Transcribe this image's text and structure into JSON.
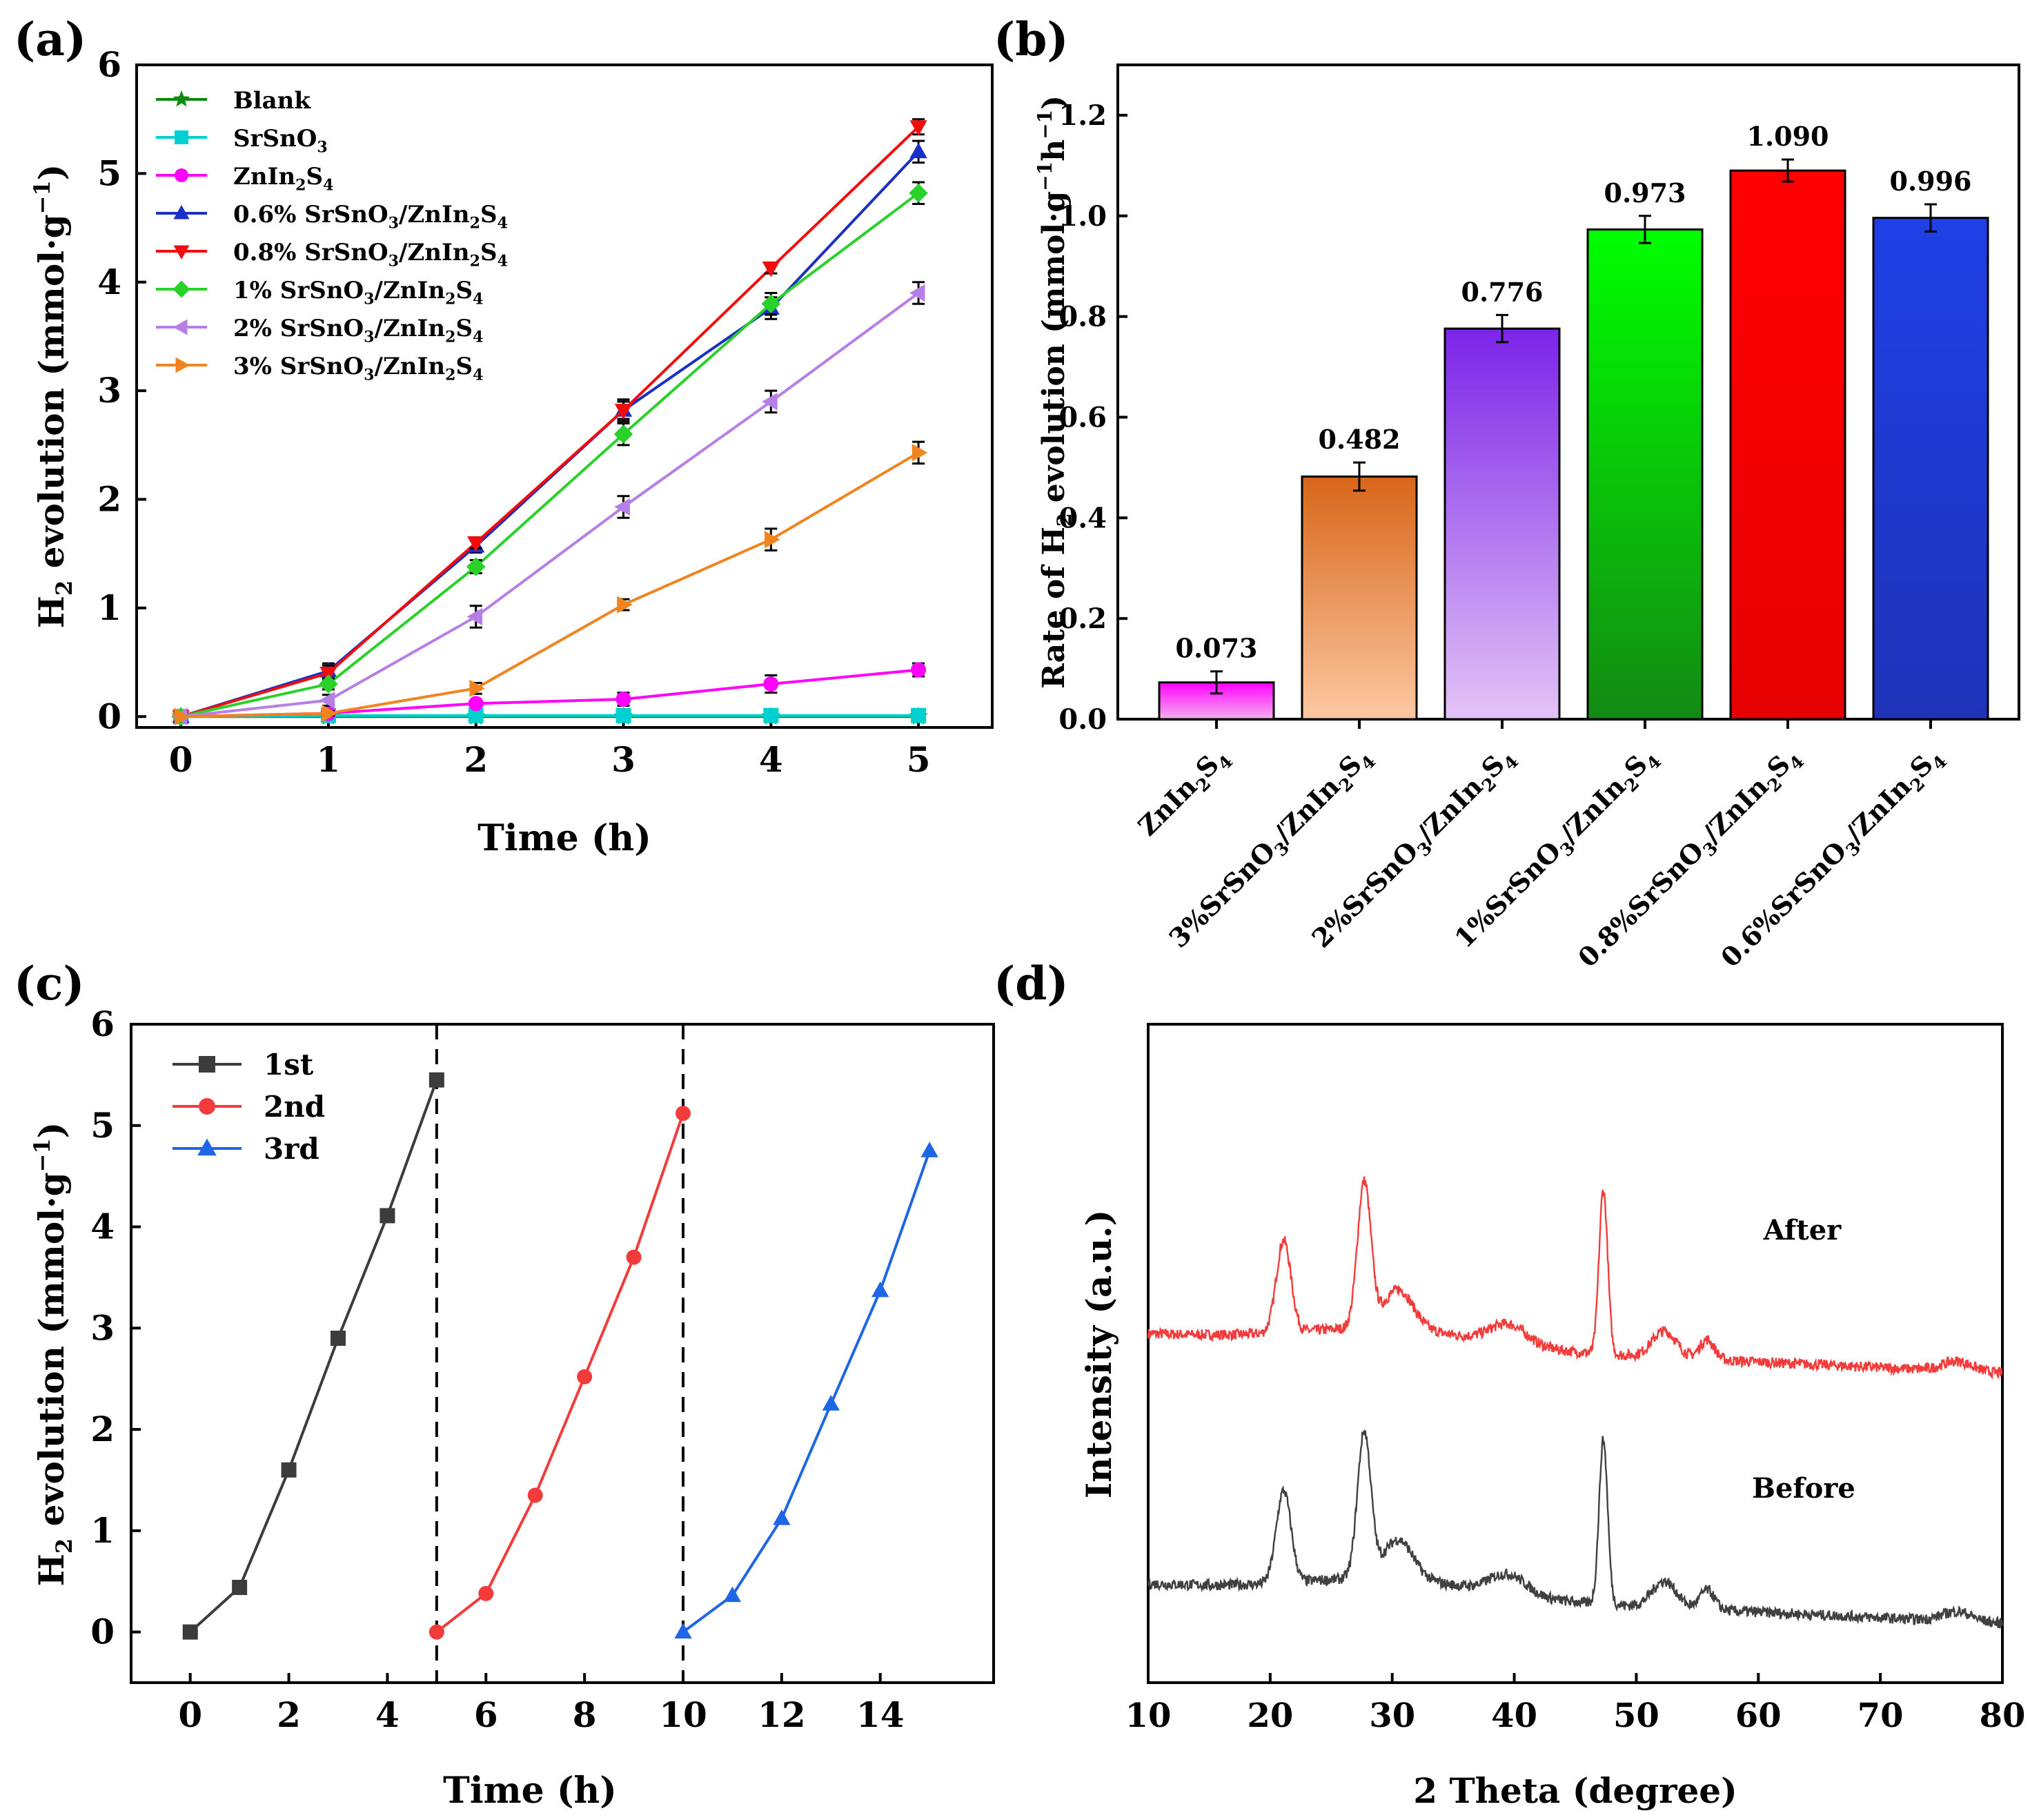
{
  "figure": {
    "panels": [
      {
        "id": "a",
        "label": "(a)"
      },
      {
        "id": "b",
        "label": "(b)"
      },
      {
        "id": "c",
        "label": "(c)"
      },
      {
        "id": "d",
        "label": "(d)"
      }
    ]
  },
  "chart_data": [
    {
      "id": "a",
      "type": "line",
      "title": "",
      "xlabel": "Time (h)",
      "ylabel_main": "H",
      "ylabel_sub": "2",
      "ylabel_rest": " evolution (mmol·g",
      "ylabel_sup": "−1",
      "ylabel_close": ")",
      "xlim": [
        -0.3,
        5.5
      ],
      "ylim": [
        -0.1,
        6
      ],
      "x_ticks": [
        "0",
        "1",
        "2",
        "3",
        "4",
        "5"
      ],
      "y_ticks": [
        "0",
        "1",
        "2",
        "3",
        "4",
        "5",
        "6"
      ],
      "x": [
        0,
        1,
        2,
        3,
        4,
        5
      ],
      "legend_position": "top-left",
      "series": [
        {
          "name": "Blank",
          "pre": "Blank",
          "sub1": "",
          "mid": "",
          "sub2": "",
          "post": "",
          "sub3": "",
          "color": "#0b8a0b",
          "marker": "star",
          "values": [
            0,
            0,
            0,
            0,
            0,
            0
          ],
          "errors": [
            0,
            0,
            0,
            0,
            0,
            0
          ]
        },
        {
          "name": "SrSnO3",
          "pre": "SrSnO",
          "sub1": "3",
          "mid": "",
          "sub2": "",
          "post": "",
          "sub3": "",
          "color": "#00d0d0",
          "marker": "square",
          "values": [
            0,
            0.01,
            0.01,
            0.01,
            0.01,
            0.01
          ],
          "errors": [
            0,
            0,
            0,
            0,
            0,
            0
          ]
        },
        {
          "name": "ZnIn2S4",
          "pre": "ZnIn",
          "sub1": "2",
          "mid": "S",
          "sub2": "4",
          "post": "",
          "sub3": "",
          "color": "#ff00ff",
          "marker": "circle",
          "values": [
            0,
            0.03,
            0.12,
            0.16,
            0.3,
            0.43
          ],
          "errors": [
            0,
            0.02,
            0.03,
            0.06,
            0.08,
            0.06
          ]
        },
        {
          "name": "0.6% SrSnO3/ZnIn2S4",
          "pre": "0.6% SrSnO",
          "sub1": "3",
          "mid": "/ZnIn",
          "sub2": "2",
          "post": "S",
          "sub3": "4",
          "color": "#1a2fc6",
          "marker": "triangle-up",
          "values": [
            0,
            0.42,
            1.57,
            2.82,
            3.76,
            5.2
          ],
          "errors": [
            0,
            0.07,
            0.06,
            0.08,
            0.1,
            0.1
          ]
        },
        {
          "name": "0.8% SrSnO3/ZnIn2S4",
          "pre": "0.8% SrSnO",
          "sub1": "3",
          "mid": "/ZnIn",
          "sub2": "2",
          "post": "S",
          "sub3": "4",
          "color": "#f20c0c",
          "marker": "triangle-down",
          "values": [
            0,
            0.4,
            1.6,
            2.82,
            4.13,
            5.43
          ],
          "errors": [
            0,
            0.07,
            0.05,
            0.1,
            0.05,
            0.07
          ]
        },
        {
          "name": "1% SrSnO3/ZnIn2S4",
          "pre": "1%  SrSnO",
          "sub1": "3",
          "mid": "/ZnIn",
          "sub2": "2",
          "post": "S",
          "sub3": "4",
          "color": "#2bd12b",
          "marker": "diamond",
          "values": [
            0,
            0.3,
            1.38,
            2.6,
            3.8,
            4.82
          ],
          "errors": [
            0,
            0.05,
            0.06,
            0.1,
            0.1,
            0.1
          ]
        },
        {
          "name": "2% SrSnO3/ZnIn2S4",
          "pre": "2%  SrSnO",
          "sub1": "3",
          "mid": "/ZnIn",
          "sub2": "2",
          "post": "S",
          "sub3": "4",
          "color": "#b77ee8",
          "marker": "triangle-left",
          "values": [
            0,
            0.15,
            0.92,
            1.93,
            2.9,
            3.9
          ],
          "errors": [
            0,
            0.05,
            0.1,
            0.1,
            0.1,
            0.1
          ]
        },
        {
          "name": "3% SrSnO3/ZnIn2S4",
          "pre": "3% SrSnO",
          "sub1": "3",
          "mid": "/ZnIn",
          "sub2": "2",
          "post": "S",
          "sub3": "4",
          "color": "#f28420",
          "marker": "triangle-right",
          "values": [
            0,
            0.03,
            0.26,
            1.03,
            1.63,
            2.43
          ],
          "errors": [
            0,
            0.02,
            0.05,
            0.05,
            0.1,
            0.1
          ]
        }
      ]
    },
    {
      "id": "b",
      "type": "bar",
      "title": "",
      "xlabel": "",
      "ylabel_main": "Rate of H",
      "ylabel_sub": "2",
      "ylabel_rest": " evolution (mmol·g",
      "ylabel_sup": "−1",
      "ylabel_mid": "h",
      "ylabel_sup2": "−1",
      "ylabel_close": ")",
      "ylim": [
        0,
        1.3
      ],
      "y_ticks": [
        "0.0",
        "0.2",
        "0.4",
        "0.6",
        "0.8",
        "1.0",
        "1.2"
      ],
      "categories": [
        {
          "pre": "ZnIn",
          "sub1": "2",
          "mid": "S",
          "sub2": "4",
          "post": "",
          "sub3": "",
          "tail": "",
          "sub4": ""
        },
        {
          "pre": "3%SrSnO",
          "sub1": "3",
          "mid": "/ZnIn",
          "sub2": "2",
          "post": "S",
          "sub3": "4",
          "tail": "",
          "sub4": ""
        },
        {
          "pre": "2%SrSnO",
          "sub1": "3",
          "mid": "/ZnIn",
          "sub2": "2",
          "post": "S",
          "sub3": "4",
          "tail": "",
          "sub4": ""
        },
        {
          "pre": "1%SrSnO",
          "sub1": "3",
          "mid": "/ZnIn",
          "sub2": "2",
          "post": "S",
          "sub3": "4",
          "tail": "",
          "sub4": ""
        },
        {
          "pre": "0.8%SrSnO",
          "sub1": "3",
          "mid": "/ZnIn",
          "sub2": "2",
          "post": "S",
          "sub3": "4",
          "tail": "",
          "sub4": ""
        },
        {
          "pre": "0.6%SrSnO",
          "sub1": "3",
          "mid": "/ZnIn",
          "sub2": "2",
          "post": "S",
          "sub3": "4",
          "tail": "",
          "sub4": ""
        }
      ],
      "values": [
        0.073,
        0.482,
        0.776,
        0.973,
        1.09,
        0.996
      ],
      "value_labels": [
        "0.073",
        "0.482",
        "0.776",
        "0.973",
        "1.090",
        "0.996"
      ],
      "errors": [
        0.022,
        0.028,
        0.027,
        0.027,
        0.022,
        0.027
      ],
      "colors_top": [
        "#ff00ff",
        "#d8661a",
        "#7b24e8",
        "#00ff00",
        "#ff0000",
        "#1f40e6"
      ],
      "colors_bottom": [
        "#f5b0ef",
        "#fcc8a2",
        "#e3c4f6",
        "#138a13",
        "#e60000",
        "#1f33b8"
      ]
    },
    {
      "id": "c",
      "type": "line",
      "title": "",
      "xlabel": "Time (h)",
      "ylabel_main": "H",
      "ylabel_sub": "2",
      "ylabel_rest": " evolution (mmol·g",
      "ylabel_sup": "−1",
      "ylabel_close": ")",
      "xlim": [
        -1.2,
        16.3
      ],
      "ylim": [
        -0.5,
        6
      ],
      "x_ticks": [
        "0",
        "2",
        "4",
        "6",
        "8",
        "10",
        "12",
        "14"
      ],
      "y_ticks": [
        "0",
        "1",
        "2",
        "3",
        "4",
        "5",
        "6"
      ],
      "vlines": [
        5,
        10
      ],
      "legend_position": "top-left",
      "series": [
        {
          "name": "1st",
          "color": "#3c3c3c",
          "marker": "square",
          "x": [
            0,
            1,
            2,
            3,
            4,
            5
          ],
          "values": [
            0,
            0.44,
            1.6,
            2.9,
            4.11,
            5.45
          ]
        },
        {
          "name": "2nd",
          "color": "#f23c3c",
          "marker": "circle",
          "x": [
            5,
            6,
            7,
            8,
            9,
            10
          ],
          "values": [
            0,
            0.38,
            1.35,
            2.52,
            3.7,
            5.12
          ]
        },
        {
          "name": "3rd",
          "color": "#1f66e6",
          "marker": "triangle-up",
          "x": [
            10,
            11,
            12,
            13,
            14,
            15
          ],
          "values": [
            0,
            0.36,
            1.12,
            2.25,
            3.37,
            4.75
          ]
        }
      ]
    },
    {
      "id": "d",
      "type": "line",
      "title": "",
      "xlabel": "2 Theta (degree)",
      "ylabel": "Intensity (a.u.)",
      "xlim": [
        10,
        80
      ],
      "ylim": [
        0,
        100
      ],
      "x_ticks": [
        "10",
        "20",
        "30",
        "40",
        "50",
        "60",
        "70",
        "80"
      ],
      "y_ticks": [],
      "peaks": [
        {
          "center": 21.1,
          "height": 14,
          "width": 0.6
        },
        {
          "center": 27.7,
          "height": 22,
          "width": 0.55
        },
        {
          "center": 30.5,
          "height": 6,
          "width": 1.2
        },
        {
          "center": 39.5,
          "height": 3,
          "width": 1.5
        },
        {
          "center": 47.3,
          "height": 25,
          "width": 0.35
        },
        {
          "center": 52.3,
          "height": 4,
          "width": 1.0
        },
        {
          "center": 55.8,
          "height": 3,
          "width": 0.6
        },
        {
          "center": 76.3,
          "height": 1.5,
          "width": 1.2
        }
      ],
      "series": [
        {
          "name": "After",
          "color": "#f23c3c",
          "offset": 46
        },
        {
          "name": "Before",
          "color": "#404040",
          "offset": 8
        }
      ]
    }
  ]
}
